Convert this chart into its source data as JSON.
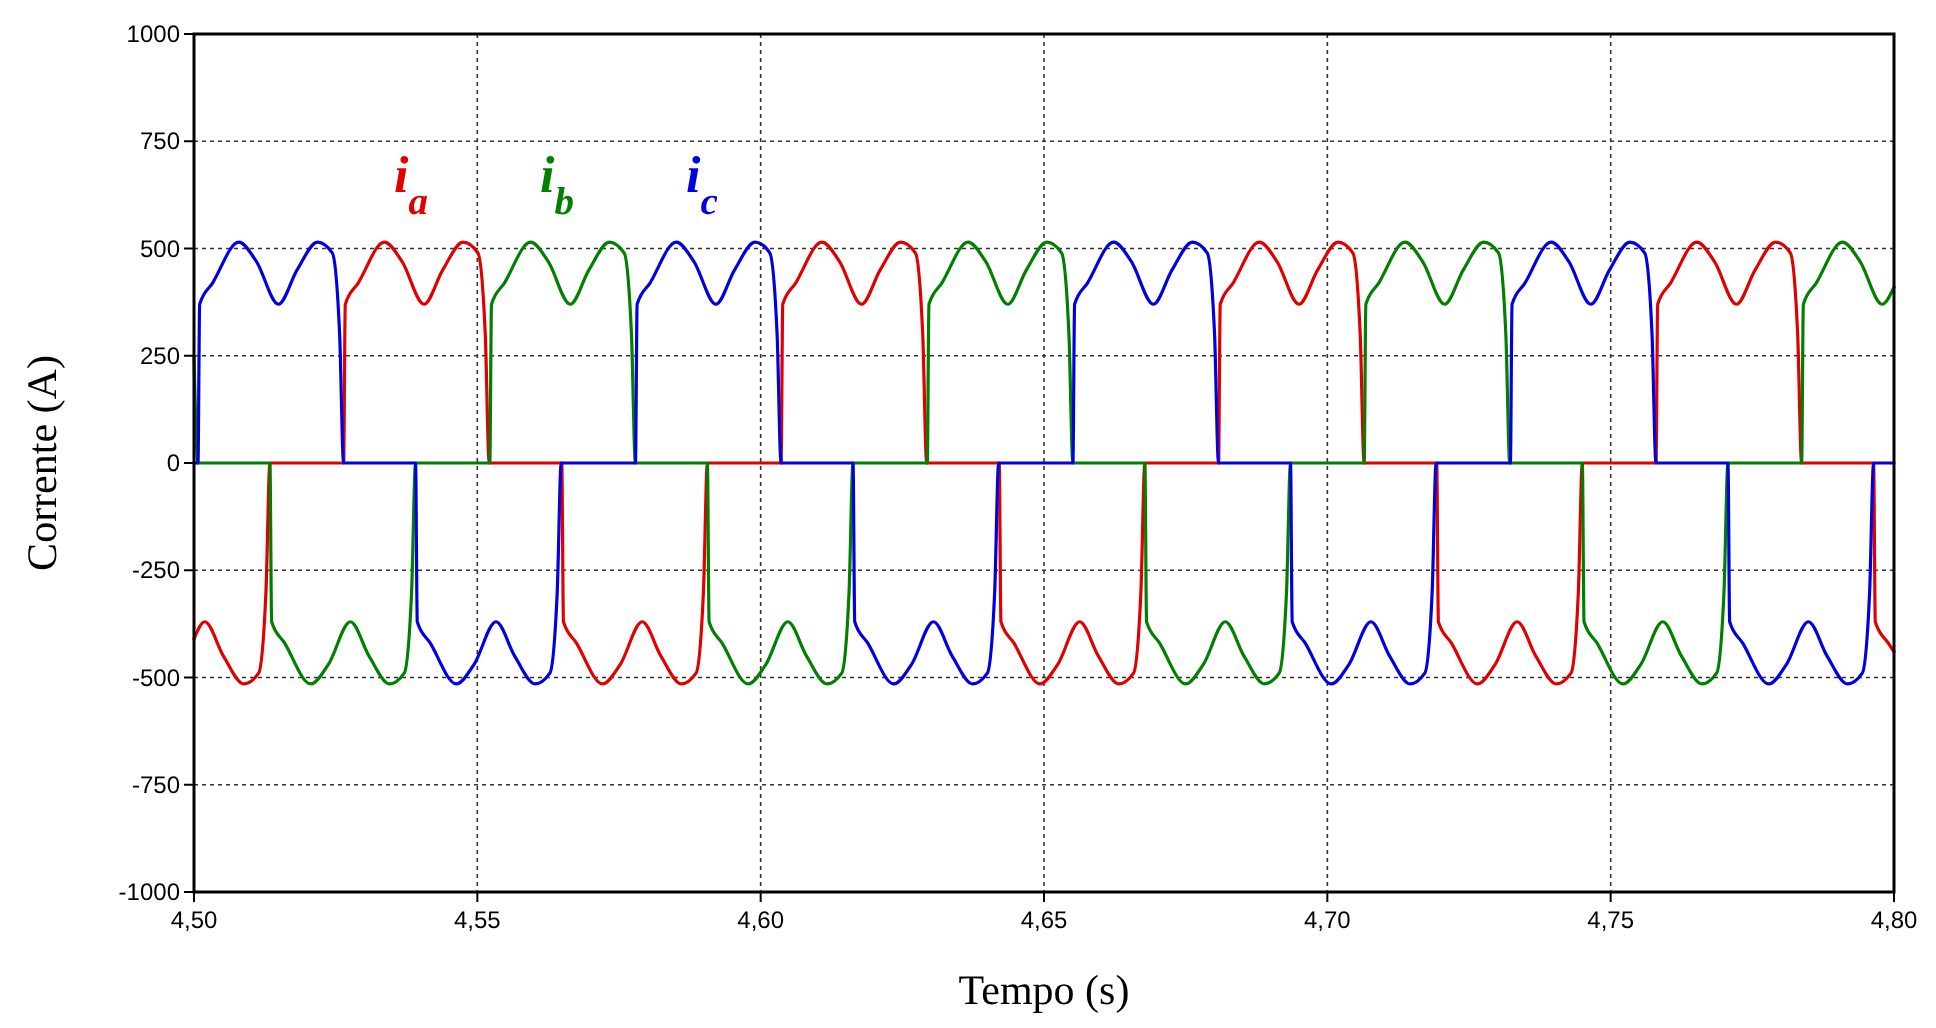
{
  "chart_data": {
    "type": "line",
    "xlabel": "Tempo (s)",
    "ylabel": "Corrente (A)",
    "xlim": [
      4.5,
      4.8
    ],
    "xticks": [
      {
        "value": 4.5,
        "label": "4,50"
      },
      {
        "value": 4.55,
        "label": "4,55"
      },
      {
        "value": 4.6,
        "label": "4,60"
      },
      {
        "value": 4.65,
        "label": "4,65"
      },
      {
        "value": 4.7,
        "label": "4,70"
      },
      {
        "value": 4.75,
        "label": "4,75"
      },
      {
        "value": 4.8,
        "label": "4,80"
      }
    ],
    "ylim": [
      -1000,
      1000
    ],
    "yticks": [
      -1000,
      -750,
      -500,
      -250,
      0,
      250,
      500,
      750,
      1000
    ],
    "grid": true,
    "line_style": "solid",
    "series": [
      {
        "name": "i$_{a}$",
        "color": "#e00000",
        "x": [
          4.5,
          4.5019,
          4.5052,
          4.5088,
          4.5114,
          4.5127,
          4.5134,
          4.5264,
          4.5267,
          4.529,
          4.5336,
          4.5367,
          4.5406,
          4.5439,
          4.5475,
          4.5501,
          4.5514,
          4.5521,
          4.5649,
          4.5652,
          4.5675,
          4.5721,
          4.5752,
          4.5791,
          4.5824,
          4.586,
          4.5886,
          4.5899,
          4.5906,
          4.6036,
          4.6039,
          4.6062,
          4.6108,
          4.6139,
          4.6178,
          4.6211,
          4.6247,
          4.6273,
          4.6286,
          4.6293,
          4.6421,
          4.6424,
          4.6447,
          4.6493,
          4.6524,
          4.6563,
          4.6596,
          4.6632,
          4.6658,
          4.6671,
          4.6678,
          4.6808,
          4.6811,
          4.6834,
          4.688,
          4.6911,
          4.695,
          4.6983,
          4.7019,
          4.7045,
          4.7058,
          4.7065,
          4.7193,
          4.7196,
          4.7219,
          4.7265,
          4.7296,
          4.7335,
          4.7368,
          4.7404,
          4.743,
          4.7443,
          4.745,
          4.758,
          4.7583,
          4.7606,
          4.7652,
          4.7683,
          4.7722,
          4.7755,
          4.7791,
          4.7817,
          4.783,
          4.7837,
          4.7964,
          4.7967,
          4.799,
          4.8
        ],
        "values": [
          -410,
          -370,
          -450,
          -515,
          -490,
          -300,
          0,
          0,
          370,
          420,
          515,
          470,
          370,
          450,
          515,
          490,
          300,
          0,
          0,
          -370,
          -420,
          -515,
          -470,
          -370,
          -450,
          -515,
          -490,
          -300,
          0,
          0,
          370,
          420,
          515,
          470,
          370,
          450,
          515,
          490,
          300,
          0,
          0,
          -370,
          -420,
          -515,
          -470,
          -370,
          -450,
          -515,
          -490,
          -300,
          0,
          0,
          370,
          420,
          515,
          470,
          370,
          450,
          515,
          490,
          300,
          0,
          0,
          -370,
          -420,
          -515,
          -470,
          -370,
          -450,
          -515,
          -490,
          -300,
          0,
          0,
          370,
          420,
          515,
          470,
          370,
          450,
          515,
          490,
          300,
          0,
          0,
          -370,
          -420,
          -440
        ]
      },
      {
        "name": "i$_{b}$",
        "color": "#008000",
        "x": [
          4.5,
          4.5007,
          4.5134,
          4.5137,
          4.516,
          4.5206,
          4.5237,
          4.5276,
          4.5309,
          4.5345,
          4.5371,
          4.5384,
          4.5391,
          4.5522,
          4.5525,
          4.5548,
          4.5594,
          4.5625,
          4.5664,
          4.5697,
          4.5733,
          4.5759,
          4.5772,
          4.5779,
          4.5906,
          4.5909,
          4.5932,
          4.5978,
          4.6009,
          4.6048,
          4.6081,
          4.6117,
          4.6143,
          4.6156,
          4.6163,
          4.6294,
          4.6297,
          4.632,
          4.6366,
          4.6397,
          4.6436,
          4.6469,
          4.6505,
          4.6531,
          4.6544,
          4.6551,
          4.6678,
          4.6681,
          4.6704,
          4.675,
          4.6781,
          4.682,
          4.6853,
          4.6889,
          4.6915,
          4.6928,
          4.6935,
          4.7065,
          4.7068,
          4.7091,
          4.7137,
          4.7168,
          4.7207,
          4.724,
          4.7276,
          4.7302,
          4.7315,
          4.7322,
          4.745,
          4.7453,
          4.7476,
          4.7522,
          4.7553,
          4.7592,
          4.7625,
          4.7661,
          4.7687,
          4.77,
          4.7707,
          4.7837,
          4.784,
          4.7863,
          4.7909,
          4.794,
          4.7979,
          4.8
        ],
        "values": [
          250,
          0,
          0,
          -370,
          -420,
          -515,
          -470,
          -370,
          -450,
          -515,
          -490,
          -300,
          0,
          0,
          370,
          420,
          515,
          470,
          370,
          450,
          515,
          490,
          300,
          0,
          0,
          -370,
          -420,
          -515,
          -470,
          -370,
          -450,
          -515,
          -490,
          -300,
          0,
          0,
          370,
          420,
          515,
          470,
          370,
          450,
          515,
          490,
          300,
          0,
          0,
          -370,
          -420,
          -515,
          -470,
          -370,
          -450,
          -515,
          -490,
          -300,
          0,
          0,
          370,
          420,
          515,
          470,
          370,
          450,
          515,
          490,
          300,
          0,
          0,
          -370,
          -420,
          -515,
          -470,
          -370,
          -450,
          -515,
          -490,
          -300,
          0,
          0,
          370,
          420,
          515,
          470,
          370,
          410
        ]
      },
      {
        "name": "i$_{c}$",
        "color": "#0000e0",
        "x": [
          4.5,
          4.5007,
          4.501,
          4.5033,
          4.5079,
          4.511,
          4.5149,
          4.5182,
          4.5218,
          4.5244,
          4.5257,
          4.5264,
          4.5391,
          4.5394,
          4.5417,
          4.5463,
          4.5494,
          4.5533,
          4.5566,
          4.5602,
          4.5628,
          4.5641,
          4.5648,
          4.5779,
          4.5782,
          4.5805,
          4.5851,
          4.5882,
          4.5921,
          4.5954,
          4.599,
          4.6016,
          4.6029,
          4.6036,
          4.6163,
          4.6166,
          4.6189,
          4.6235,
          4.6266,
          4.6305,
          4.6338,
          4.6374,
          4.64,
          4.6413,
          4.642,
          4.6551,
          4.6554,
          4.6577,
          4.6623,
          4.6654,
          4.6693,
          4.6726,
          4.6762,
          4.6788,
          4.6801,
          4.6808,
          4.6935,
          4.6938,
          4.6961,
          4.7007,
          4.7038,
          4.7077,
          4.711,
          4.7146,
          4.7172,
          4.7185,
          4.7192,
          4.7323,
          4.7326,
          4.7349,
          4.7395,
          4.7426,
          4.7465,
          4.7498,
          4.7534,
          4.756,
          4.7573,
          4.758,
          4.7707,
          4.771,
          4.7733,
          4.7779,
          4.781,
          4.7849,
          4.7882,
          4.7918,
          4.7944,
          4.7957,
          4.7964,
          4.8
        ],
        "values": [
          0,
          0,
          370,
          420,
          515,
          470,
          370,
          450,
          515,
          490,
          300,
          0,
          0,
          -370,
          -420,
          -515,
          -470,
          -370,
          -450,
          -515,
          -490,
          -300,
          0,
          0,
          370,
          420,
          515,
          470,
          370,
          450,
          515,
          490,
          300,
          0,
          0,
          -370,
          -420,
          -515,
          -470,
          -370,
          -450,
          -515,
          -490,
          -300,
          0,
          0,
          370,
          420,
          515,
          470,
          370,
          450,
          515,
          490,
          300,
          0,
          0,
          -370,
          -420,
          -515,
          -470,
          -370,
          -450,
          -515,
          -490,
          -300,
          0,
          0,
          370,
          420,
          515,
          470,
          370,
          450,
          515,
          490,
          300,
          0,
          0,
          -370,
          -420,
          -515,
          -470,
          -370,
          -450,
          -515,
          -490,
          -300,
          0,
          0
        ]
      }
    ]
  }
}
